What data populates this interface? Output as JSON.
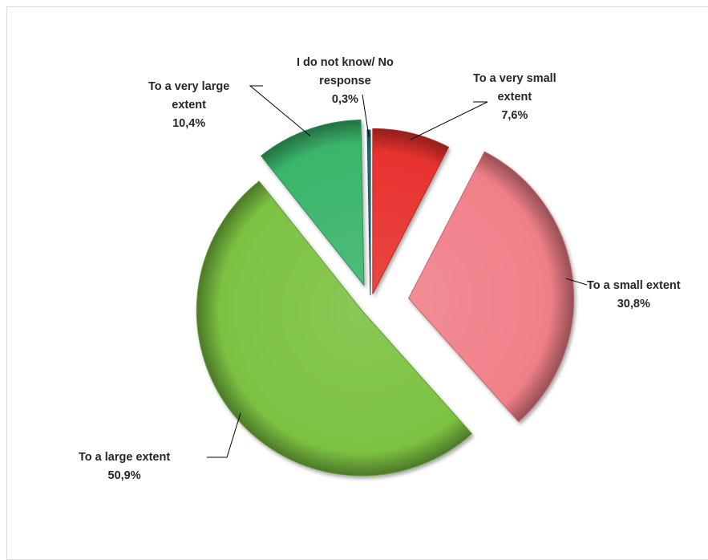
{
  "chart_data": {
    "type": "pie",
    "title": "",
    "start_angle_deg": 0,
    "exploded": true,
    "shadow": true,
    "slices": [
      {
        "name": "To a very small extent",
        "name_lines": [
          "To a very small",
          "extent"
        ],
        "value": 7.6,
        "label": "7,6%",
        "color": "#e8322e"
      },
      {
        "name": "To a small extent",
        "name_lines": [
          "To a small extent"
        ],
        "value": 30.8,
        "label": "30,8%",
        "color": "#f08088"
      },
      {
        "name": "To a large extent",
        "name_lines": [
          "To a large extent"
        ],
        "value": 50.9,
        "label": "50,9%",
        "color": "#7cc242"
      },
      {
        "name": "To a very large extent",
        "name_lines": [
          "To a very large",
          "extent"
        ],
        "value": 10.4,
        "label": "10,4%",
        "color": "#3ab56a"
      },
      {
        "name": "I do not know/ No response",
        "name_lines": [
          "I do not know/ No",
          "response"
        ],
        "value": 0.3,
        "label": "0,3%",
        "color": "#1e6e7a"
      }
    ]
  }
}
